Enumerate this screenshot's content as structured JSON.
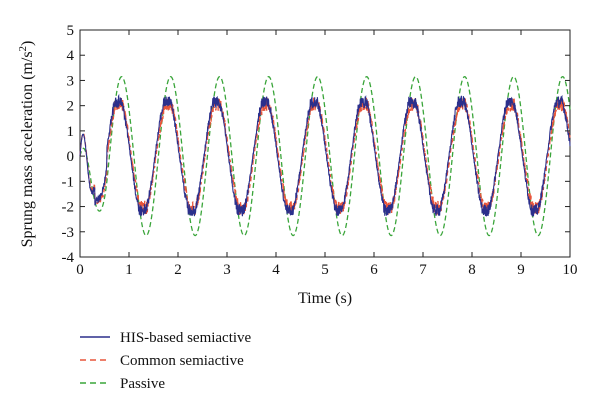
{
  "chart_data": {
    "type": "line",
    "title": "",
    "xlabel": "Time (s)",
    "ylabel_main": "Sprung mass acceleration (m/s",
    "ylabel_exponent": "2",
    "ylabel_close": ")",
    "xlim": [
      0,
      10
    ],
    "ylim": [
      -4,
      5
    ],
    "xticks": [
      0,
      1,
      2,
      3,
      4,
      5,
      6,
      7,
      8,
      9,
      10
    ],
    "yticks": [
      -4,
      -3,
      -2,
      -1,
      0,
      1,
      2,
      3,
      4,
      5
    ],
    "grid": false,
    "legend_placement": "below",
    "series": [
      {
        "name": "HIS-based semiactive",
        "color": "#2b2f8c",
        "dash": "solid",
        "frequency_hz": 1.0,
        "amplitude": 2.15,
        "phase_peak_s": 0.78,
        "ripple": 0.35
      },
      {
        "name": "Common semiactive",
        "color": "#e8553a",
        "dash": "dashed",
        "frequency_hz": 1.0,
        "amplitude": 2.05,
        "phase_peak_s": 0.8,
        "ripple": 0.4
      },
      {
        "name": "Passive",
        "color": "#3aa53a",
        "dash": "dashed",
        "frequency_hz": 1.0,
        "amplitude": 3.15,
        "phase_peak_s": 0.85,
        "ripple": 0.0
      }
    ]
  }
}
